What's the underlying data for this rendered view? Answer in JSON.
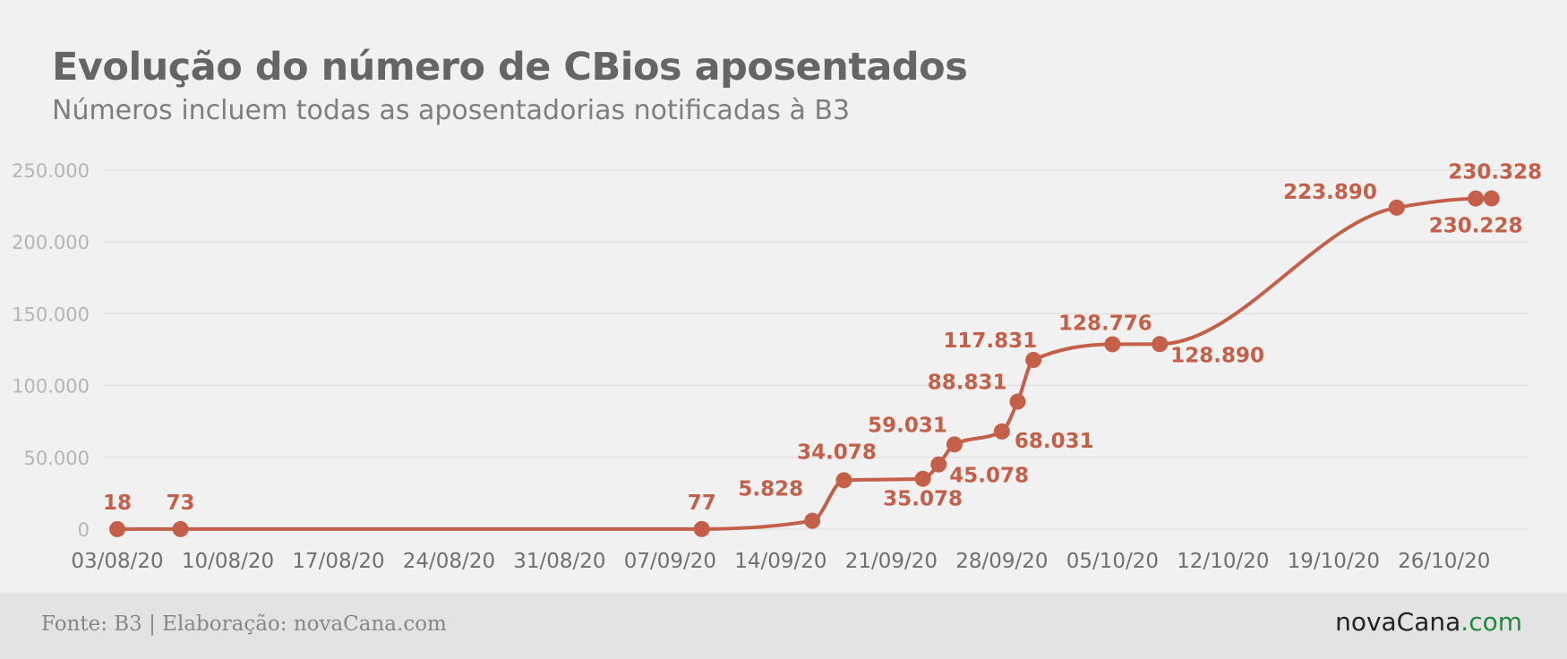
{
  "header": {
    "title": "Evolução do número de CBios aposentados",
    "subtitle": "Números incluem todas as aposentadorias notificadas à B3"
  },
  "footer": {
    "source": "Fonte: B3 | Elaboração: novaCana.com",
    "logo_name": "novaCana",
    "logo_tld": ".com"
  },
  "colors": {
    "series": "#c4604a",
    "label": "#c4604a",
    "grid": "#dcdcdc",
    "ytick": "#b5b5b5",
    "xtick": "#6f6f6f"
  },
  "chart_data": {
    "type": "line",
    "title": "Evolução do número de CBios aposentados",
    "subtitle": "Números incluem todas as aposentadorias notificadas à B3",
    "xlabel": "",
    "ylabel": "",
    "ylim": [
      0,
      250000
    ],
    "yticks": [
      0,
      50000,
      100000,
      150000,
      200000,
      250000
    ],
    "ytick_labels": [
      "0",
      "50.000",
      "100.000",
      "150.000",
      "200.000",
      "250.000"
    ],
    "xticks": [
      "2020-08-03",
      "2020-08-10",
      "2020-08-17",
      "2020-08-24",
      "2020-08-31",
      "2020-09-07",
      "2020-09-14",
      "2020-09-21",
      "2020-09-28",
      "2020-10-05",
      "2020-10-12",
      "2020-10-19",
      "2020-10-26"
    ],
    "xtick_labels": [
      "03/08/20",
      "10/08/20",
      "17/08/20",
      "24/08/20",
      "31/08/20",
      "07/09/20",
      "14/09/20",
      "21/09/20",
      "28/09/20",
      "05/10/20",
      "12/10/20",
      "19/10/20",
      "26/10/20"
    ],
    "grid": true,
    "series": [
      {
        "points": [
          {
            "x": "2020-08-03",
            "y": 18,
            "label": "18"
          },
          {
            "x": "2020-08-07",
            "y": 73,
            "label": "73"
          },
          {
            "x": "2020-09-09",
            "y": 77,
            "label": "77"
          },
          {
            "x": "2020-09-16",
            "y": 5828,
            "label": "5.828"
          },
          {
            "x": "2020-09-18",
            "y": 34078,
            "label": "34.078"
          },
          {
            "x": "2020-09-23",
            "y": 35078,
            "label": "35.078"
          },
          {
            "x": "2020-09-24",
            "y": 45078,
            "label": "45.078"
          },
          {
            "x": "2020-09-25",
            "y": 59031,
            "label": "59.031"
          },
          {
            "x": "2020-09-28",
            "y": 68031,
            "label": "68.031"
          },
          {
            "x": "2020-09-29",
            "y": 88831,
            "label": "88.831"
          },
          {
            "x": "2020-09-30",
            "y": 117831,
            "label": "117.831"
          },
          {
            "x": "2020-10-05",
            "y": 128776,
            "label": "128.776"
          },
          {
            "x": "2020-10-08",
            "y": 128890,
            "label": "128.890"
          },
          {
            "x": "2020-10-23",
            "y": 223890,
            "label": "223.890"
          },
          {
            "x": "2020-10-28",
            "y": 230228,
            "label": "230.228"
          },
          {
            "x": "2020-10-29",
            "y": 230328,
            "label": "230.328"
          }
        ]
      }
    ]
  }
}
